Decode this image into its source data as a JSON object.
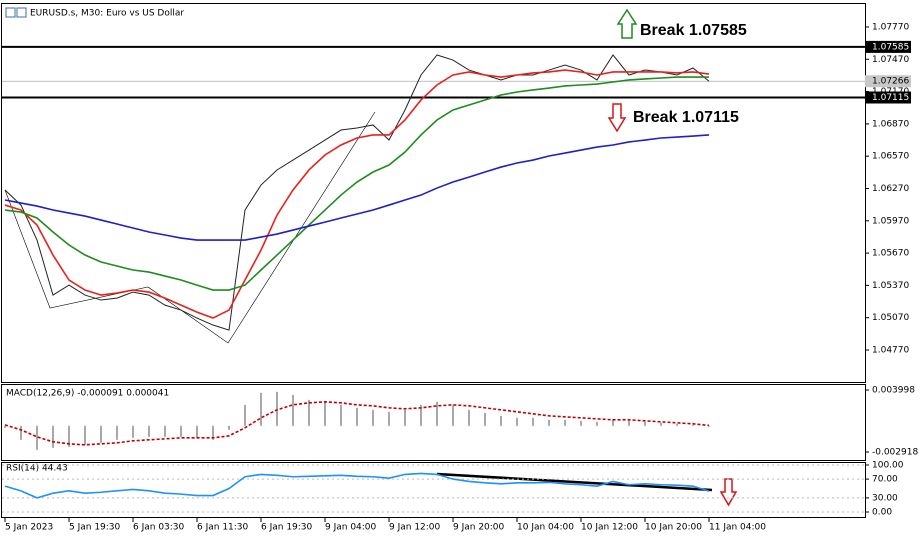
{
  "chart_data": [
    {
      "type": "line",
      "title": "EURUSD.s, M30:  Euro vs US Dollar",
      "categories": [
        "5 Jan 2023",
        null,
        null,
        null,
        "5 Jan 19:30",
        null,
        null,
        null,
        "6 Jan 03:30",
        null,
        null,
        null,
        "6 Jan 11:30",
        null,
        null,
        null,
        "6 Jan 19:30",
        null,
        null,
        null,
        "9 Jan 04:00",
        null,
        null,
        null,
        "9 Jan 12:00",
        null,
        null,
        null,
        "9 Jan 20:00",
        null,
        null,
        null,
        "10 Jan 04:00",
        null,
        null,
        null,
        "10 Jan 12:00",
        null,
        null,
        null,
        "10 Jan 20:00",
        null,
        null,
        null,
        "11 Jan 04:00"
      ],
      "ylim": [
        1.04473,
        1.07974
      ],
      "yticks": [
        {
          "value": 1.0777,
          "label": "1.07770"
        },
        {
          "value": 1.0747,
          "label": "1.07470"
        },
        {
          "value": 1.0717,
          "label": "1.07170"
        },
        {
          "value": 1.0687,
          "label": "1.06870"
        },
        {
          "value": 1.0657,
          "label": "1.06570"
        },
        {
          "value": 1.0627,
          "label": "1.06270"
        },
        {
          "value": 1.0597,
          "label": "1.05970"
        },
        {
          "value": 1.0567,
          "label": "1.05670"
        },
        {
          "value": 1.0537,
          "label": "1.05370"
        },
        {
          "value": 1.0507,
          "label": "1.05070"
        },
        {
          "value": 1.0477,
          "label": "1.04770"
        }
      ],
      "levels": [
        1.07585,
        1.07115
      ],
      "current_price": {
        "value": 1.07266,
        "label": "1.07266"
      },
      "annotations": [
        "Break 1.07585",
        "Break 1.07115"
      ],
      "series": [
        {
          "color": "#222222",
          "values": [
            1.06256,
            1.06116,
            1.05791,
            1.0528,
            1.05373,
            1.0528,
            1.05234,
            1.05252,
            1.05308,
            1.0528,
            1.05187,
            1.05141,
            1.05067,
            1.05002,
            1.04955,
            1.0607,
            1.06302,
            1.06442,
            1.06534,
            1.06627,
            1.0672,
            1.06813,
            1.06832,
            1.0686,
            1.0672,
            1.06999,
            1.07324,
            1.0751,
            1.07463,
            1.0737,
            1.07324,
            1.07278,
            1.07324,
            1.07324,
            1.0737,
            1.07417,
            1.0737,
            1.07278,
            1.0751,
            1.07324,
            1.0737,
            1.07352,
            1.07324,
            1.07389,
            1.07266
          ]
        },
        {
          "color": "#e8211b",
          "values": [
            1.06116,
            1.0607,
            1.05931,
            1.05652,
            1.0542,
            1.05327,
            1.0528,
            1.05299,
            1.05327,
            1.05308,
            1.05252,
            1.05187,
            1.05122,
            1.05067,
            1.05141,
            1.0542,
            1.05698,
            1.06023,
            1.06256,
            1.06442,
            1.06581,
            1.06674,
            1.06739,
            1.06767,
            1.06767,
            1.06906,
            1.07092,
            1.07231,
            1.07324,
            1.07352,
            1.07324,
            1.07305,
            1.07324,
            1.07343,
            1.07352,
            1.0737,
            1.07352,
            1.07324,
            1.07352,
            1.07352,
            1.07352,
            1.07352,
            1.07343,
            1.07352,
            1.07333
          ]
        },
        {
          "color": "#1e8c1e",
          "values": [
            1.0607,
            1.06051,
            1.05996,
            1.05866,
            1.05745,
            1.05652,
            1.05587,
            1.0555,
            1.05513,
            1.05494,
            1.05457,
            1.0542,
            1.05373,
            1.05327,
            1.05327,
            1.05373,
            1.05513,
            1.05652,
            1.05791,
            1.05931,
            1.0607,
            1.06209,
            1.0633,
            1.06423,
            1.06488,
            1.06609,
            1.06767,
            1.06906,
            1.06999,
            1.07045,
            1.07092,
            1.07138,
            1.07166,
            1.07185,
            1.07203,
            1.07222,
            1.07231,
            1.0724,
            1.07259,
            1.07278,
            1.07287,
            1.07296,
            1.07305,
            1.07305,
            1.07305
          ]
        },
        {
          "color": "#1f1fc8",
          "values": [
            1.06163,
            1.06135,
            1.06107,
            1.0607,
            1.06042,
            1.06014,
            1.05977,
            1.0594,
            1.05903,
            1.05866,
            1.05838,
            1.0581,
            1.05791,
            1.05791,
            1.05791,
            1.05791,
            1.05819,
            1.05847,
            1.05884,
            1.05921,
            1.05958,
            1.05996,
            1.06033,
            1.0607,
            1.06116,
            1.06163,
            1.06209,
            1.06274,
            1.0633,
            1.06376,
            1.06423,
            1.06469,
            1.06507,
            1.06534,
            1.06572,
            1.06599,
            1.06627,
            1.06655,
            1.06674,
            1.06702,
            1.0672,
            1.06739,
            1.06748,
            1.06757,
            1.06767
          ]
        }
      ]
    },
    {
      "type": "macd",
      "title": "MACD(12,26,9) -0.000091 0.000041",
      "ylim": [
        -0.004033,
        0.004667
      ],
      "yticks": [
        0.003998,
        -0.002918
      ],
      "series": [
        {
          "type": "bar",
          "color": "#a8a8a8",
          "values": [
            -0.000223,
            -0.001561,
            -0.002676,
            -0.002453,
            -0.002342,
            -0.002119,
            -0.001896,
            -0.001561,
            -0.001338,
            -0.001227,
            -0.001227,
            -0.001227,
            -0.001338,
            -0.001561,
            -0.000446,
            0.002342,
            0.00368,
            0.00379,
            0.003457,
            0.002899,
            0.002676,
            0.002342,
            0.002007,
            0.001784,
            0.001561,
            0.001784,
            0.002342,
            0.002676,
            0.002342,
            0.001784,
            0.00145,
            0.001115,
            0.000892,
            0.000892,
            0.000669,
            0.000669,
            0.000558,
            0.000446,
            0.000669,
            0.000558,
            0.000446,
            0.000335,
            0.000223,
            0.000112,
            -9.1e-05
          ]
        },
        {
          "type": "line",
          "dash": true,
          "color": "#c00000",
          "values": [
            0.000112,
            -0.000446,
            -0.001227,
            -0.001784,
            -0.002007,
            -0.002119,
            -0.002007,
            -0.001896,
            -0.001673,
            -0.001561,
            -0.00145,
            -0.001338,
            -0.001338,
            -0.001338,
            -0.001115,
            -0.000223,
            0.000892,
            0.001784,
            0.002342,
            0.002565,
            0.002676,
            0.002565,
            0.002342,
            0.00223,
            0.002007,
            0.001896,
            0.002007,
            0.00223,
            0.002342,
            0.00223,
            0.002007,
            0.001784,
            0.001561,
            0.001338,
            0.001115,
            0.001004,
            0.000892,
            0.000781,
            0.000669,
            0.000669,
            0.000558,
            0.000446,
            0.000335,
            0.000223,
            4.1e-05
          ]
        }
      ]
    },
    {
      "type": "line",
      "title": "RSI(14) 44.43",
      "ylim": [
        -12.8,
        106.4
      ],
      "yticks": [
        {
          "value": 100,
          "label": "100.00"
        },
        {
          "value": 70,
          "label": "70.00"
        },
        {
          "value": 30,
          "label": "30.00"
        },
        {
          "value": 0,
          "label": "0.00"
        }
      ],
      "series": [
        {
          "color": "#1e90ff",
          "values": [
            55,
            45,
            30,
            40,
            45,
            40,
            42,
            45,
            48,
            45,
            40,
            38,
            35,
            35,
            50,
            75,
            80,
            78,
            75,
            76,
            77,
            78,
            76,
            75,
            72,
            80,
            82,
            80,
            70,
            65,
            62,
            60,
            62,
            62,
            63,
            60,
            58,
            55,
            65,
            58,
            60,
            58,
            57,
            55,
            44.43
          ]
        }
      ]
    }
  ]
}
